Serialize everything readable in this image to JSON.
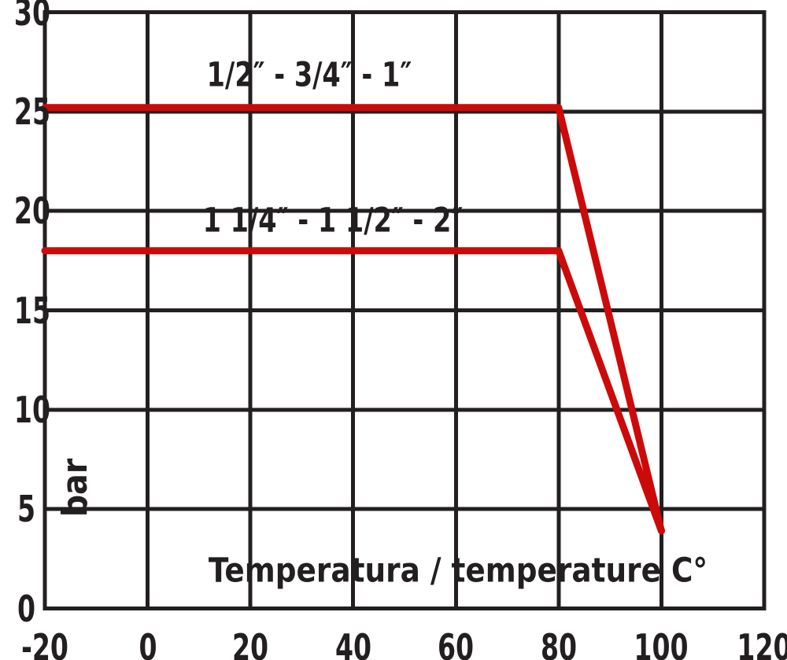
{
  "figure": {
    "kind": "pressure-temperature rating diagram",
    "background": "#ffffff"
  },
  "colors": {
    "grid": "#231f20",
    "text": "#231f20",
    "series_line": "#cc0a0a"
  },
  "chart_data": {
    "type": "line",
    "title": "",
    "xlabel": "Temperatura / temperature C°",
    "ylabel": "bar",
    "xlim": [
      -20,
      120
    ],
    "ylim": [
      0,
      30
    ],
    "x_ticks": [
      -20,
      0,
      20,
      40,
      60,
      80,
      100,
      120
    ],
    "y_ticks": [
      0,
      5,
      10,
      15,
      20,
      25,
      30
    ],
    "grid": true,
    "legend_position": "inline-labels",
    "series": [
      {
        "name": "1/2″ - 3/4″ - 1″",
        "color": "#cc0a0a",
        "points": [
          [
            -20,
            25.2
          ],
          [
            80,
            25.2
          ],
          [
            100,
            3.9
          ]
        ],
        "label": {
          "text": "1/2″ - 3/4″ - 1″",
          "anchor_x": 31.5,
          "anchor_y": 26.8
        }
      },
      {
        "name": "1 1/4″ - 1 1/2″ - 2″",
        "color": "#cc0a0a",
        "points": [
          [
            -20,
            18
          ],
          [
            80,
            18
          ],
          [
            100,
            3.9
          ]
        ],
        "label": {
          "text": "1 1/4″ - 1 1/2″ - 2″",
          "anchor_x": 36,
          "anchor_y": 19.5
        }
      }
    ]
  }
}
